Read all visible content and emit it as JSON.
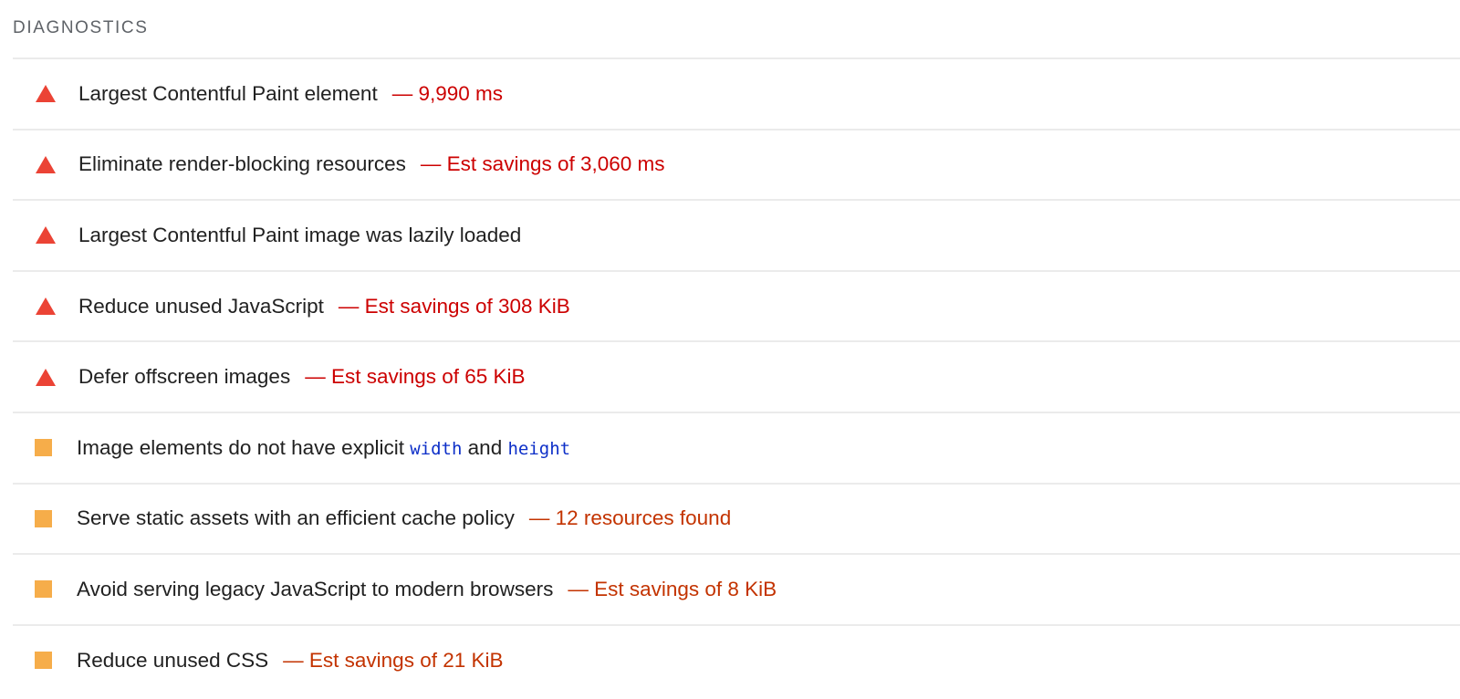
{
  "section_title": "DIAGNOSTICS",
  "colors": {
    "fail": "#eb4335",
    "average": "#f6ad4a",
    "fail_text": "#cc0000",
    "average_text": "#c33300",
    "code": "#0d2fc8"
  },
  "audits": [
    {
      "status": "fail",
      "icon": "triangle-icon",
      "title": "Largest Contentful Paint element",
      "display": "— 9,990 ms"
    },
    {
      "status": "fail",
      "icon": "triangle-icon",
      "title": "Eliminate render-blocking resources",
      "display": "— Est savings of 3,060 ms"
    },
    {
      "status": "fail",
      "icon": "triangle-icon",
      "title": "Largest Contentful Paint image was lazily loaded",
      "display": ""
    },
    {
      "status": "fail",
      "icon": "triangle-icon",
      "title": "Reduce unused JavaScript",
      "display": "— Est savings of 308 KiB"
    },
    {
      "status": "fail",
      "icon": "triangle-icon",
      "title": "Defer offscreen images",
      "display": "— Est savings of 65 KiB"
    },
    {
      "status": "average",
      "icon": "square-icon",
      "title_parts": [
        "Image elements do not have explicit ",
        "width",
        " and ",
        "height"
      ],
      "display": ""
    },
    {
      "status": "average",
      "icon": "square-icon",
      "title": "Serve static assets with an efficient cache policy",
      "display": "— 12 resources found"
    },
    {
      "status": "average",
      "icon": "square-icon",
      "title": "Avoid serving legacy JavaScript to modern browsers",
      "display": "— Est savings of 8 KiB"
    },
    {
      "status": "average",
      "icon": "square-icon",
      "title": "Reduce unused CSS",
      "display": "— Est savings of 21 KiB"
    }
  ]
}
